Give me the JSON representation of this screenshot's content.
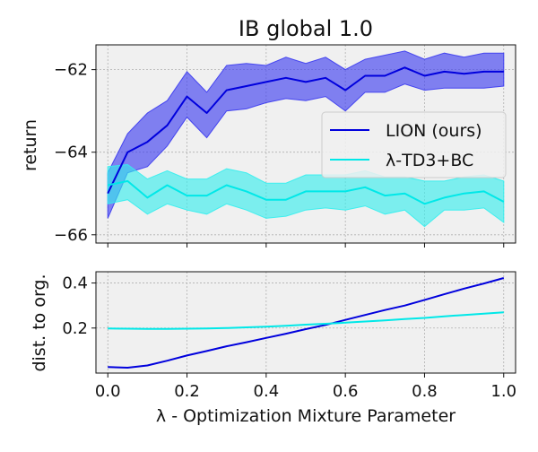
{
  "chart_data": [
    {
      "type": "line",
      "title": "IB global 1.0",
      "ylabel": "return",
      "xlabel": "",
      "xlim": [
        -0.03,
        1.03
      ],
      "ylim": [
        -66.2,
        -61.4
      ],
      "x_ticks": [
        0.0,
        0.2,
        0.4,
        0.6,
        0.8,
        1.0
      ],
      "x_tick_labels_visible": false,
      "y_ticks": [
        -66,
        -64,
        -62
      ],
      "y_tick_labels": [
        "−66",
        "−64",
        "−62"
      ],
      "grid": true,
      "legend": {
        "placement": "center-right"
      },
      "x": [
        0.0,
        0.05,
        0.1,
        0.15,
        0.2,
        0.25,
        0.3,
        0.35,
        0.4,
        0.45,
        0.5,
        0.55,
        0.6,
        0.65,
        0.7,
        0.75,
        0.8,
        0.85,
        0.9,
        0.95,
        1.0
      ],
      "series": [
        {
          "name": "LION (ours)",
          "color": "#0000dd",
          "band_color": "#3a3af0",
          "values": [
            -65.0,
            -64.0,
            -63.75,
            -63.35,
            -62.65,
            -63.05,
            -62.5,
            -62.4,
            -62.3,
            -62.2,
            -62.3,
            -62.2,
            -62.5,
            -62.15,
            -62.15,
            -61.95,
            -62.15,
            -62.05,
            -62.1,
            -62.05,
            -62.05
          ],
          "lower": [
            -65.6,
            -64.5,
            -64.35,
            -63.85,
            -63.15,
            -63.65,
            -63.0,
            -62.95,
            -62.8,
            -62.7,
            -62.75,
            -62.65,
            -63.0,
            -62.55,
            -62.55,
            -62.35,
            -62.5,
            -62.45,
            -62.45,
            -62.45,
            -62.4
          ],
          "upper": [
            -64.5,
            -63.55,
            -63.05,
            -62.75,
            -62.05,
            -62.55,
            -61.9,
            -61.85,
            -61.9,
            -61.7,
            -61.85,
            -61.7,
            -62.0,
            -61.75,
            -61.65,
            -61.55,
            -61.75,
            -61.6,
            -61.7,
            -61.6,
            -61.6
          ]
        },
        {
          "name": "λ-TD3+BC",
          "color": "#00e8e8",
          "band_color": "#33eeee",
          "values": [
            -64.8,
            -64.7,
            -65.1,
            -64.8,
            -65.05,
            -65.05,
            -64.8,
            -64.95,
            -65.15,
            -65.15,
            -64.95,
            -64.95,
            -64.95,
            -64.85,
            -65.05,
            -65.0,
            -65.25,
            -65.1,
            -65.0,
            -64.95,
            -65.2
          ],
          "lower": [
            -65.25,
            -65.15,
            -65.5,
            -65.25,
            -65.4,
            -65.5,
            -65.25,
            -65.4,
            -65.6,
            -65.55,
            -65.4,
            -65.35,
            -65.4,
            -65.3,
            -65.5,
            -65.4,
            -65.8,
            -65.4,
            -65.4,
            -65.35,
            -65.7
          ],
          "upper": [
            -64.35,
            -64.3,
            -64.65,
            -64.45,
            -64.65,
            -64.65,
            -64.4,
            -64.5,
            -64.75,
            -64.75,
            -64.55,
            -64.55,
            -64.55,
            -64.45,
            -64.6,
            -64.6,
            -64.7,
            -64.7,
            -64.6,
            -64.55,
            -64.7
          ]
        }
      ]
    },
    {
      "type": "line",
      "title": "",
      "ylabel": "dist. to org.",
      "xlabel": "λ - Optimization Mixture Parameter",
      "xlim": [
        -0.03,
        1.03
      ],
      "ylim": [
        0.0,
        0.45
      ],
      "x_ticks": [
        0.0,
        0.2,
        0.4,
        0.6,
        0.8,
        1.0
      ],
      "x_tick_labels": [
        "0.0",
        "0.2",
        "0.4",
        "0.6",
        "0.8",
        "1.0"
      ],
      "y_ticks": [
        0.2,
        0.4
      ],
      "y_tick_labels": [
        "0.2",
        "0.4"
      ],
      "grid": true,
      "x": [
        0.0,
        0.05,
        0.1,
        0.15,
        0.2,
        0.25,
        0.3,
        0.35,
        0.4,
        0.45,
        0.5,
        0.55,
        0.6,
        0.65,
        0.7,
        0.75,
        0.8,
        0.85,
        0.9,
        0.95,
        1.0
      ],
      "series": [
        {
          "name": "LION (ours)",
          "color": "#0000dd",
          "values": [
            0.027,
            0.024,
            0.034,
            0.055,
            0.078,
            0.098,
            0.119,
            0.137,
            0.156,
            0.175,
            0.195,
            0.214,
            0.236,
            0.258,
            0.28,
            0.3,
            0.325,
            0.35,
            0.375,
            0.398,
            0.422
          ]
        },
        {
          "name": "λ-TD3+BC",
          "color": "#00e8e8",
          "values": [
            0.198,
            0.197,
            0.196,
            0.196,
            0.197,
            0.198,
            0.2,
            0.203,
            0.206,
            0.21,
            0.215,
            0.219,
            0.224,
            0.229,
            0.234,
            0.24,
            0.245,
            0.252,
            0.258,
            0.264,
            0.27
          ]
        }
      ]
    }
  ]
}
